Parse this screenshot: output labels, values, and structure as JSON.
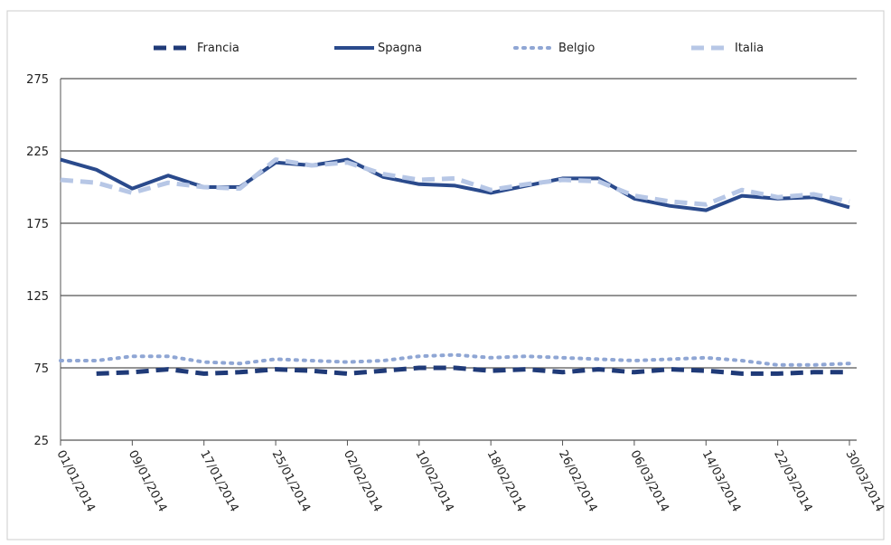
{
  "chart_data": {
    "type": "line",
    "x": [
      "01/01/2014",
      "05/01/2014",
      "09/01/2014",
      "13/01/2014",
      "17/01/2014",
      "21/01/2014",
      "25/01/2014",
      "29/01/2014",
      "02/02/2014",
      "06/02/2014",
      "10/02/2014",
      "14/02/2014",
      "18/02/2014",
      "22/02/2014",
      "26/02/2014",
      "02/03/2014",
      "06/03/2014",
      "10/03/2014",
      "14/03/2014",
      "18/03/2014",
      "22/03/2014",
      "26/03/2014",
      "30/03/2014"
    ],
    "series": [
      {
        "name": "Francia",
        "color": "#1f3a78",
        "line_style": "dashed",
        "values": [
          null,
          71,
          72,
          74,
          71,
          72,
          74,
          73,
          71,
          73,
          75,
          75,
          73,
          74,
          72,
          74,
          72,
          74,
          73,
          71,
          71,
          72,
          72
        ]
      },
      {
        "name": "Spagna",
        "color": "#2a4a8c",
        "line_style": "solid",
        "values": [
          219,
          212,
          199,
          208,
          200,
          200,
          217,
          215,
          219,
          207,
          202,
          201,
          196,
          201,
          206,
          206,
          192,
          187,
          184,
          194,
          192,
          193,
          186
        ]
      },
      {
        "name": "Belgio",
        "color": "#8fa6d4",
        "line_style": "dotted",
        "values": [
          80,
          80,
          83,
          83,
          79,
          78,
          81,
          80,
          79,
          80,
          83,
          84,
          82,
          83,
          82,
          81,
          80,
          81,
          82,
          80,
          77,
          77,
          78
        ]
      },
      {
        "name": "Italia",
        "color": "#b7c7e6",
        "line_style": "dashed",
        "values": [
          205,
          203,
          196,
          203,
          200,
          199,
          219,
          215,
          217,
          209,
          205,
          206,
          198,
          202,
          205,
          204,
          194,
          190,
          188,
          198,
          193,
          195,
          190
        ]
      }
    ],
    "xticks": [
      "01/01/2014",
      "09/01/2014",
      "17/01/2014",
      "25/01/2014",
      "02/02/2014",
      "10/02/2014",
      "18/02/2014",
      "26/02/2014",
      "06/03/2014",
      "14/03/2014",
      "22/03/2014",
      "30/03/2014"
    ],
    "ylim": [
      25,
      275
    ],
    "yticks": [
      25,
      75,
      125,
      175,
      225,
      275
    ],
    "grid": true,
    "legend": "top"
  }
}
